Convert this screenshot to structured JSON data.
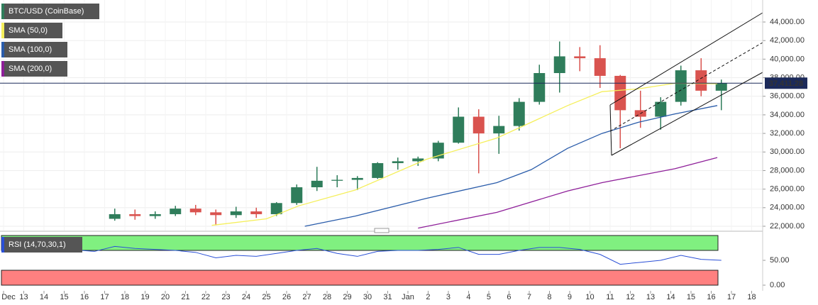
{
  "chart_data": [
    {
      "type": "candlestick",
      "name": "BTC/USD (CoinBase)",
      "up_color": "#2f7d5b",
      "down_color": "#d9534f",
      "x": [
        5.5,
        6.5,
        7.5,
        8.5,
        9.5,
        10.5,
        11.5,
        12.5,
        13.5,
        14.5,
        15.5,
        16.5,
        17.5,
        18.5,
        19.5,
        20.5,
        21.5,
        22.5,
        23.5,
        24.5,
        25.5,
        26.5,
        27.5,
        28.5,
        29.5,
        30.5,
        31.5,
        32.5,
        33.5,
        34.5,
        35.5
      ],
      "open": [
        22800,
        23300,
        23100,
        23300,
        23900,
        23500,
        23200,
        23600,
        23300,
        24500,
        26200,
        26900,
        27000,
        27200,
        28800,
        29000,
        29300,
        31000,
        33800,
        32000,
        32800,
        35400,
        38500,
        40300,
        40100,
        38200,
        34500,
        33800,
        35400,
        38800,
        36600
      ],
      "high": [
        23900,
        23800,
        23600,
        24200,
        24300,
        23800,
        24100,
        24000,
        24600,
        26500,
        28400,
        27500,
        27400,
        28900,
        29400,
        29500,
        31200,
        34800,
        34600,
        33900,
        35800,
        39400,
        41900,
        41300,
        41500,
        38300,
        36600,
        35900,
        39300,
        40100,
        37800
      ],
      "low": [
        22600,
        22700,
        22800,
        23100,
        23200,
        22100,
        22900,
        22900,
        23100,
        24300,
        25800,
        26200,
        25900,
        27100,
        28100,
        28500,
        29000,
        30900,
        27700,
        29800,
        32300,
        35100,
        36400,
        38700,
        36900,
        30400,
        32600,
        32400,
        35000,
        36000,
        34500
      ],
      "close": [
        23300,
        23100,
        23300,
        23900,
        23500,
        23200,
        23600,
        23300,
        24500,
        26200,
        26900,
        27000,
        27200,
        28800,
        29000,
        29300,
        31000,
        33800,
        32000,
        32800,
        35400,
        38500,
        40300,
        40100,
        38200,
        34500,
        33800,
        35400,
        38800,
        36600,
        37411.28
      ],
      "series": [
        {
          "name": "SMA (50,0)",
          "color": "#f5ef5a",
          "x": [
            10.3,
            13,
            14.6,
            17.4,
            20.9,
            24.4,
            27.9,
            29.6,
            31.4,
            33.2,
            35.3
          ],
          "values": [
            22100,
            22800,
            24200,
            25900,
            29200,
            31500,
            35000,
            36500,
            36800,
            37400,
            37350
          ]
        },
        {
          "name": "SMA (100,0)",
          "color": "#2a5caa",
          "x": [
            14.9,
            17.4,
            20.9,
            24.4,
            26.1,
            27.9,
            29.6,
            31.4,
            33.2,
            35.3
          ],
          "values": [
            22000,
            23100,
            25000,
            26700,
            28100,
            30400,
            32000,
            33200,
            34100,
            35000
          ]
        },
        {
          "name": "SMA (200,0)",
          "color": "#8e1f99",
          "x": [
            20.5,
            24.4,
            27.9,
            29.6,
            33.2,
            35.3
          ],
          "values": [
            21800,
            23500,
            25800,
            26700,
            28200,
            29400
          ]
        }
      ],
      "last_price": {
        "value": 37411.28,
        "label": "37,411.28"
      },
      "xlim": [
        -0.175,
        37.544
      ],
      "ylim": [
        21540,
        46370
      ],
      "grid": true,
      "yticks": [
        {
          "value": 22000,
          "label": "22,000.00"
        },
        {
          "value": 24000,
          "label": "24,000.00"
        },
        {
          "value": 26000,
          "label": "26,000.00"
        },
        {
          "value": 28000,
          "label": "28,000.00"
        },
        {
          "value": 30000,
          "label": "30,000.00"
        },
        {
          "value": 32000,
          "label": "32,000.00"
        },
        {
          "value": 34000,
          "label": "34,000.00"
        },
        {
          "value": 36000,
          "label": "36,000.00"
        },
        {
          "value": 38000,
          "label": "38,000.00"
        },
        {
          "value": 40000,
          "label": "40,000.00"
        },
        {
          "value": 42000,
          "label": "42,000.00"
        },
        {
          "value": 44000,
          "label": "44,000.00"
        }
      ],
      "xticks": [
        {
          "value": 0,
          "label": "Dec"
        },
        {
          "value": 1,
          "label": "13"
        },
        {
          "value": 2,
          "label": "14"
        },
        {
          "value": 3,
          "label": "15"
        },
        {
          "value": 4,
          "label": "16"
        },
        {
          "value": 5,
          "label": "17"
        },
        {
          "value": 6,
          "label": "18"
        },
        {
          "value": 7,
          "label": "19"
        },
        {
          "value": 8,
          "label": "20"
        },
        {
          "value": 9,
          "label": "21"
        },
        {
          "value": 10,
          "label": "22"
        },
        {
          "value": 11,
          "label": "23"
        },
        {
          "value": 12,
          "label": "24"
        },
        {
          "value": 13,
          "label": "25"
        },
        {
          "value": 14,
          "label": "26"
        },
        {
          "value": 15,
          "label": "27"
        },
        {
          "value": 16,
          "label": "28"
        },
        {
          "value": 17,
          "label": "29"
        },
        {
          "value": 18,
          "label": "30"
        },
        {
          "value": 19,
          "label": "31"
        },
        {
          "value": 20,
          "label": "Jan"
        },
        {
          "value": 21,
          "label": "2"
        },
        {
          "value": 22,
          "label": "3"
        },
        {
          "value": 23,
          "label": "4"
        },
        {
          "value": 24,
          "label": "5"
        },
        {
          "value": 25,
          "label": "6"
        },
        {
          "value": 26,
          "label": "7"
        },
        {
          "value": 27,
          "label": "8"
        },
        {
          "value": 28,
          "label": "9"
        },
        {
          "value": 29,
          "label": "10"
        },
        {
          "value": 30,
          "label": "11"
        },
        {
          "value": 31,
          "label": "12"
        },
        {
          "value": 32,
          "label": "13"
        },
        {
          "value": 33,
          "label": "14"
        },
        {
          "value": 34,
          "label": "15"
        },
        {
          "value": 35,
          "label": "16"
        },
        {
          "value": 36,
          "label": "17"
        },
        {
          "value": 37,
          "label": "18"
        }
      ]
    },
    {
      "type": "line",
      "name": "RSI (14,70,30,1)",
      "color": "#2a4fd6",
      "x": [
        0.5,
        1.5,
        2.5,
        3.5,
        4.5,
        5.5,
        6.5,
        7.5,
        8.5,
        9.5,
        10.5,
        11.5,
        12.5,
        13.5,
        14.5,
        15.5,
        16.5,
        17.5,
        18.5,
        19.5,
        20.5,
        21.5,
        22.5,
        23.5,
        24.5,
        25.5,
        26.5,
        27.5,
        28.5,
        29.5,
        30.5,
        31.5,
        32.5,
        33.5,
        34.5,
        35.5
      ],
      "values": [
        72,
        74,
        70,
        71,
        68,
        78,
        74,
        72,
        70,
        66,
        55,
        60,
        58,
        64,
        70,
        74,
        64,
        58,
        68,
        70,
        70,
        72,
        76,
        62,
        62,
        70,
        76,
        76,
        72,
        62,
        42,
        46,
        50,
        60,
        52,
        50
      ],
      "overbought": 70,
      "oversold": 30,
      "upper_color": "#80f080",
      "lower_color": "#ff8080",
      "xlim": [
        -0.175,
        37.544
      ],
      "ylim": [
        -11.4,
        102.9
      ],
      "yticks": [
        {
          "value": 0,
          "label": "0.00"
        },
        {
          "value": 50,
          "label": "50.00"
        }
      ]
    }
  ]
}
